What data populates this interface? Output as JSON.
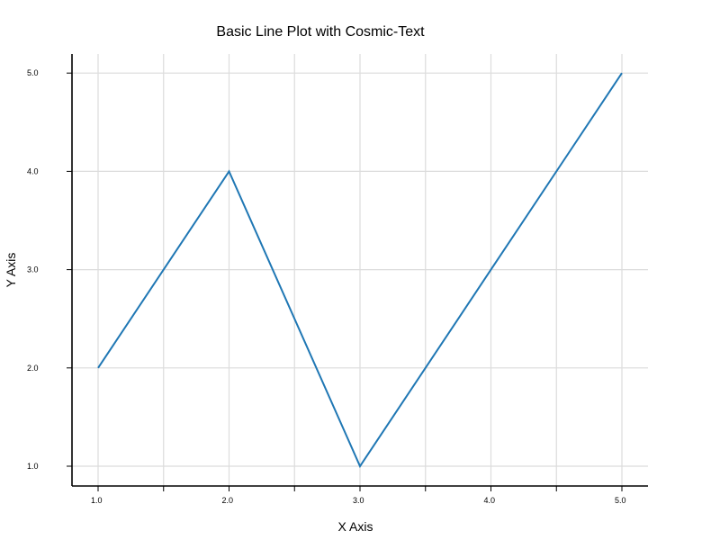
{
  "chart_data": {
    "type": "line",
    "title": "Basic Line Plot with Cosmic-Text",
    "xlabel": "X Axis",
    "ylabel": "Y Axis",
    "x": [
      1,
      2,
      3,
      4,
      5
    ],
    "series": [
      {
        "values": [
          2,
          4,
          1,
          3,
          5
        ],
        "color": "#1f77b4"
      }
    ],
    "xlim": [
      0.5,
      5.2
    ],
    "ylim": [
      0.8,
      5.1
    ],
    "xticks": [
      1,
      2,
      3,
      4,
      5
    ],
    "xtick_labels": [
      "1.0",
      "2.0",
      "3.0",
      "4.0",
      "5.0"
    ],
    "xminor_ticks": [
      1.5,
      2.5,
      3.5,
      4.5
    ],
    "yticks": [
      1,
      2,
      3,
      4,
      5
    ],
    "ytick_labels": [
      "1.0",
      "2.0",
      "3.0",
      "4.0",
      "5.0"
    ],
    "grid": true,
    "legend": "none"
  }
}
